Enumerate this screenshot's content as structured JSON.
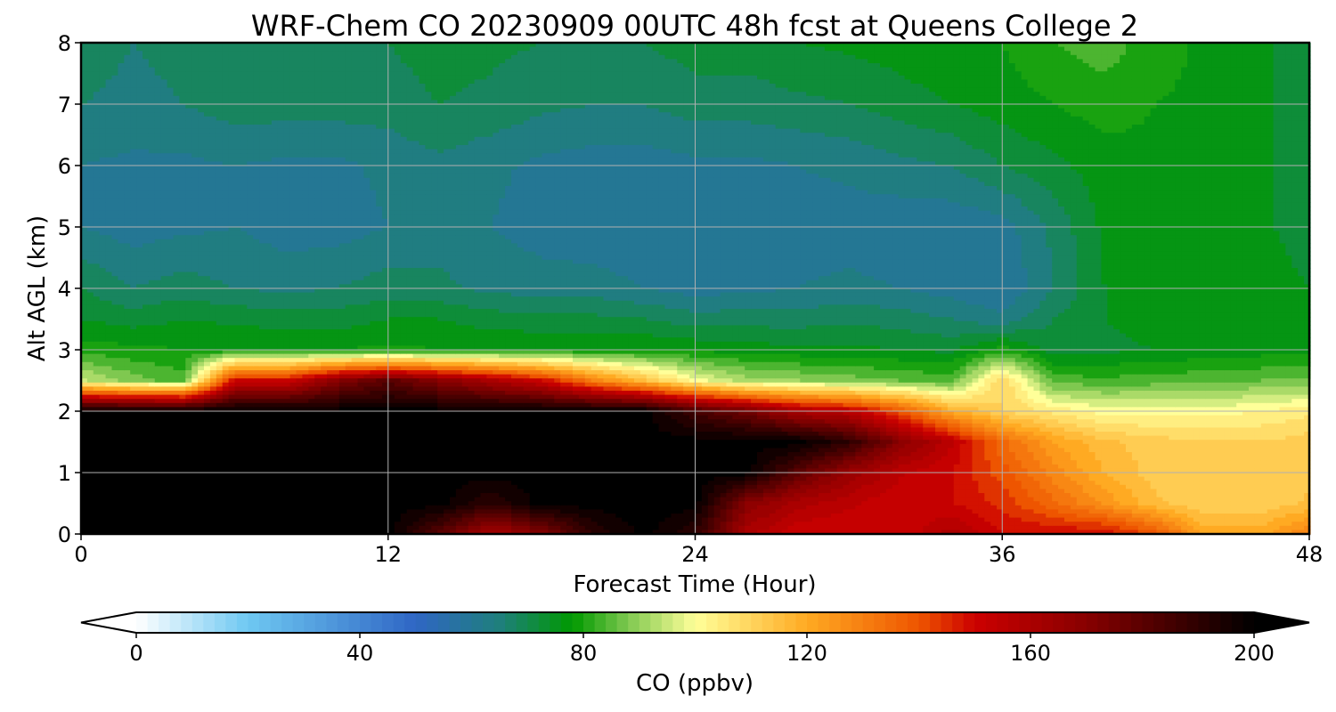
{
  "chart_data": {
    "type": "heatmap",
    "subtype": "filled-contour time-height cross-section",
    "title": "WRF-Chem CO  20230909 00UTC 48h fcst at Queens College 2",
    "xlabel": "Forecast Time (Hour)",
    "ylabel": "Alt AGL (km)",
    "xlim": [
      0,
      48
    ],
    "ylim": [
      0,
      8
    ],
    "xticks": [
      0,
      12,
      24,
      36,
      48
    ],
    "yticks": [
      0,
      1,
      2,
      3,
      4,
      5,
      6,
      7,
      8
    ],
    "grid": true,
    "x_hours": [
      0,
      2,
      4,
      6,
      8,
      10,
      12,
      14,
      16,
      18,
      20,
      22,
      24,
      26,
      28,
      30,
      32,
      34,
      36,
      38,
      40,
      42,
      44,
      46,
      48
    ],
    "y_km": [
      0,
      0.5,
      1,
      1.5,
      2,
      2.5,
      3,
      3.5,
      4,
      5,
      6,
      7,
      8
    ],
    "co_ppbv": [
      [
        200,
        200,
        200,
        200,
        200,
        200,
        200,
        180,
        160,
        170,
        190,
        200,
        190,
        160,
        150,
        150,
        150,
        160,
        150,
        150,
        150,
        140,
        120,
        120,
        130
      ],
      [
        200,
        200,
        200,
        200,
        200,
        200,
        200,
        200,
        190,
        200,
        200,
        200,
        200,
        170,
        160,
        155,
        150,
        150,
        145,
        135,
        125,
        115,
        110,
        110,
        115
      ],
      [
        200,
        200,
        200,
        200,
        200,
        200,
        200,
        200,
        200,
        200,
        200,
        200,
        200,
        200,
        180,
        165,
        155,
        150,
        140,
        128,
        118,
        112,
        110,
        110,
        112
      ],
      [
        200,
        200,
        200,
        200,
        200,
        200,
        200,
        200,
        200,
        200,
        200,
        200,
        200,
        200,
        200,
        190,
        170,
        155,
        135,
        122,
        115,
        112,
        110,
        110,
        112
      ],
      [
        200,
        200,
        200,
        200,
        200,
        200,
        200,
        200,
        200,
        200,
        200,
        200,
        185,
        175,
        160,
        155,
        140,
        120,
        110,
        105,
        100,
        100,
        100,
        102,
        105
      ],
      [
        95,
        88,
        84,
        150,
        150,
        170,
        180,
        170,
        160,
        150,
        130,
        115,
        100,
        92,
        90,
        88,
        86,
        84,
        110,
        84,
        83,
        84,
        85,
        86,
        86
      ],
      [
        80,
        79,
        78,
        78,
        78,
        78,
        79,
        78,
        78,
        78,
        78,
        78,
        77,
        76,
        75,
        75,
        74,
        73,
        80,
        72,
        73,
        74,
        75,
        76,
        76
      ],
      [
        74,
        72,
        74,
        73,
        72,
        72,
        74,
        74,
        72,
        71,
        71,
        70,
        68,
        68,
        68,
        69,
        68,
        66,
        63,
        70,
        74,
        76,
        76,
        76,
        75
      ],
      [
        70,
        66,
        68,
        66,
        65,
        66,
        68,
        67,
        65,
        64,
        64,
        62,
        60,
        61,
        62,
        63,
        62,
        60,
        58,
        66,
        74,
        76,
        76,
        76,
        74
      ],
      [
        62,
        60,
        61,
        62,
        60,
        60,
        62,
        64,
        62,
        60,
        59,
        58,
        58,
        60,
        60,
        60,
        59,
        59,
        60,
        67,
        75,
        76,
        76,
        75,
        72
      ],
      [
        62,
        61,
        61,
        62,
        61,
        61,
        63,
        65,
        63,
        61,
        60,
        60,
        61,
        61,
        62,
        63,
        65,
        66,
        70,
        73,
        76,
        77,
        77,
        75,
        71
      ],
      [
        66,
        65,
        66,
        68,
        68,
        68,
        68,
        70,
        69,
        67,
        66,
        66,
        68,
        68,
        69,
        70,
        72,
        74,
        76,
        78,
        80,
        78,
        77,
        75,
        71
      ],
      [
        68,
        66,
        67,
        68,
        69,
        70,
        70,
        72,
        71,
        70,
        69,
        70,
        72,
        72,
        74,
        75,
        76,
        78,
        78,
        82,
        84,
        80,
        77,
        75,
        72
      ]
    ]
  },
  "colorbar": {
    "label": "CO  (ppbv)",
    "min": 0,
    "max": 200,
    "ticks": [
      0,
      40,
      80,
      120,
      160,
      200
    ],
    "extend": "both",
    "stops": [
      {
        "v": 0,
        "c": "#ffffff"
      },
      {
        "v": 20,
        "c": "#6ec8f2"
      },
      {
        "v": 50,
        "c": "#2f66c4"
      },
      {
        "v": 65,
        "c": "#1f7f7c"
      },
      {
        "v": 78,
        "c": "#009900"
      },
      {
        "v": 88,
        "c": "#7fc850"
      },
      {
        "v": 100,
        "c": "#ffff99"
      },
      {
        "v": 120,
        "c": "#ffaa22"
      },
      {
        "v": 140,
        "c": "#ee5500"
      },
      {
        "v": 150,
        "c": "#cc0000"
      },
      {
        "v": 170,
        "c": "#880000"
      },
      {
        "v": 200,
        "c": "#000000"
      }
    ]
  }
}
